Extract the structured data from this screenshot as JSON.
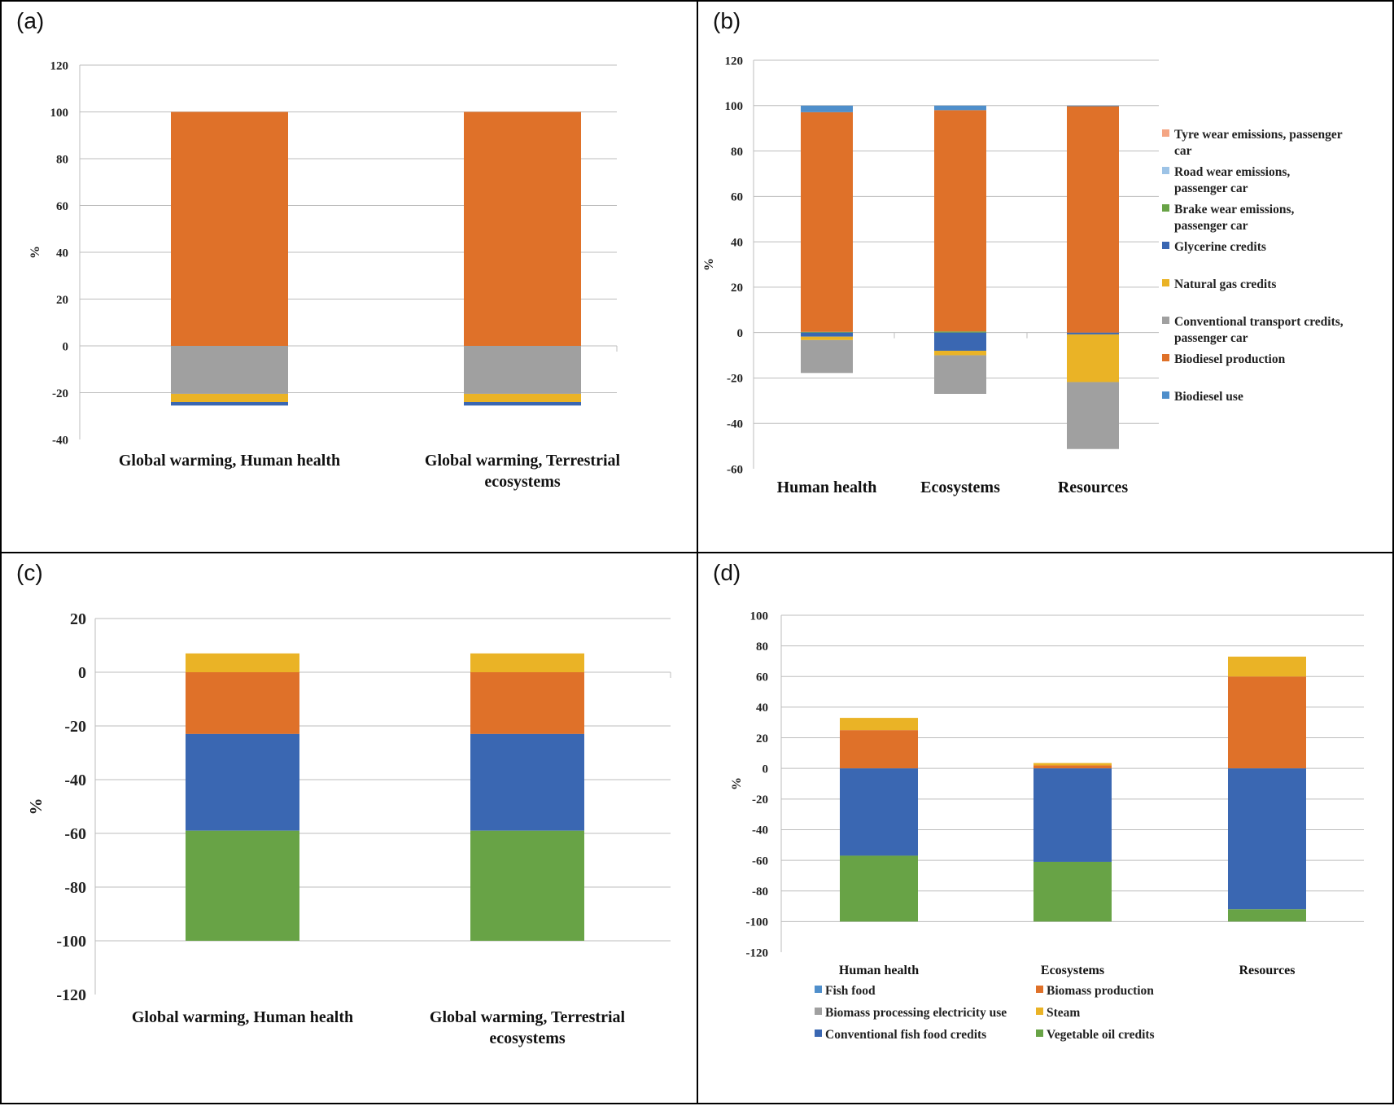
{
  "panels": [
    {
      "id": "a",
      "letter": "(a)"
    },
    {
      "id": "b",
      "letter": "(b)"
    },
    {
      "id": "c",
      "letter": "(c)"
    },
    {
      "id": "d",
      "letter": "(d)"
    }
  ],
  "colors": {
    "orange": "#DF7129",
    "gray": "#A0A0A0",
    "yellow": "#EAB326",
    "dark_blue": "#3A67B2",
    "light_blue": "#4F8FCB",
    "green": "#68A346",
    "salmon": "#F4A583",
    "pale_blue": "#9DC3E6",
    "gridline": "#BDBDBD"
  },
  "chart_data": [
    {
      "panel": "a",
      "type": "bar",
      "stacked": true,
      "title": "",
      "xlabel": "",
      "ylabel": "%",
      "ylim": [
        -40,
        120
      ],
      "yticks": [
        -40,
        -20,
        0,
        20,
        40,
        60,
        80,
        100,
        120
      ],
      "grid": true,
      "categories": [
        "Global warming, Human health",
        "Global warming, Terrestrial ecosystems"
      ],
      "series": [
        {
          "color": "#DF7129",
          "values": [
            100,
            100
          ]
        },
        {
          "color": "#A0A0A0",
          "values": [
            -20.5,
            -20.5
          ]
        },
        {
          "color": "#EAB326",
          "values": [
            -3.5,
            -3.5
          ]
        },
        {
          "color": "#3A67B2",
          "values": [
            -1.5,
            -1.5
          ]
        }
      ]
    },
    {
      "panel": "b",
      "type": "bar",
      "stacked": true,
      "title": "",
      "xlabel": "",
      "ylabel": "%",
      "ylim": [
        -60,
        120
      ],
      "yticks": [
        -60,
        -40,
        -20,
        0,
        20,
        40,
        60,
        80,
        100,
        120
      ],
      "grid": true,
      "legend_position": "right",
      "categories": [
        "Human health",
        "Ecosystems",
        "Resources"
      ],
      "series": [
        {
          "name": "Tyre wear emissions, passenger car",
          "color": "#F4A583",
          "values": [
            0,
            0,
            0
          ]
        },
        {
          "name": "Road wear emissions, passenger car",
          "color": "#9DC3E6",
          "values": [
            0,
            0,
            0
          ]
        },
        {
          "name": "Brake wear emissions, passenger car",
          "color": "#68A346",
          "values": [
            0.3,
            0.5,
            0
          ]
        },
        {
          "name": "Glycerine credits",
          "color": "#3A67B2",
          "values": [
            -1.8,
            -8.0,
            -0.8
          ]
        },
        {
          "name": "Natural gas credits",
          "color": "#EAB326",
          "values": [
            -1.5,
            -2.0,
            -21.0
          ]
        },
        {
          "name": "Conventional transport credits, passenger car",
          "color": "#A0A0A0",
          "values": [
            -14.5,
            -17.0,
            -29.5
          ]
        },
        {
          "name": "Biodiesel production",
          "color": "#DF7129",
          "values": [
            96.8,
            97.5,
            99.8
          ]
        },
        {
          "name": "Biodiesel use",
          "color": "#4F8FCB",
          "values": [
            2.9,
            2.0,
            0.2
          ]
        }
      ]
    },
    {
      "panel": "c",
      "type": "bar",
      "stacked": true,
      "title": "",
      "xlabel": "",
      "ylabel": "%",
      "ylim": [
        -120,
        20
      ],
      "yticks": [
        -120,
        -100,
        -80,
        -60,
        -40,
        -20,
        0,
        20
      ],
      "grid": true,
      "categories": [
        "Global warming, Human health",
        "Global warming, Terrestrial ecosystems"
      ],
      "series": [
        {
          "color": "#EAB326",
          "values": [
            7,
            7
          ]
        },
        {
          "color": "#DF7129",
          "values": [
            -23,
            -23
          ]
        },
        {
          "color": "#3A67B2",
          "values": [
            -36,
            -36
          ]
        },
        {
          "color": "#68A346",
          "values": [
            -41,
            -41
          ]
        }
      ]
    },
    {
      "panel": "d",
      "type": "bar",
      "stacked": true,
      "title": "",
      "xlabel": "",
      "ylabel": "%",
      "ylim": [
        -120,
        100
      ],
      "yticks": [
        -120,
        -100,
        -80,
        -60,
        -40,
        -20,
        0,
        20,
        40,
        60,
        80,
        100
      ],
      "grid": true,
      "legend_position": "bottom",
      "categories": [
        "Human health",
        "Ecosystems",
        "Resources"
      ],
      "series": [
        {
          "name": "Fish food",
          "color": "#4F8FCB",
          "values": [
            0,
            0,
            0
          ]
        },
        {
          "name": "Biomass production",
          "color": "#DF7129",
          "values": [
            25,
            2,
            60
          ]
        },
        {
          "name": "Biomass processing electricity use",
          "color": "#A0A0A0",
          "values": [
            0,
            0,
            0
          ]
        },
        {
          "name": "Steam",
          "color": "#EAB326",
          "values": [
            8,
            1.5,
            13
          ]
        },
        {
          "name": "Conventional fish food credits",
          "color": "#3A67B2",
          "values": [
            -57,
            -61,
            -92
          ]
        },
        {
          "name": "Vegetable oil credits",
          "color": "#68A346",
          "values": [
            -43,
            -39,
            -8
          ]
        }
      ]
    }
  ]
}
